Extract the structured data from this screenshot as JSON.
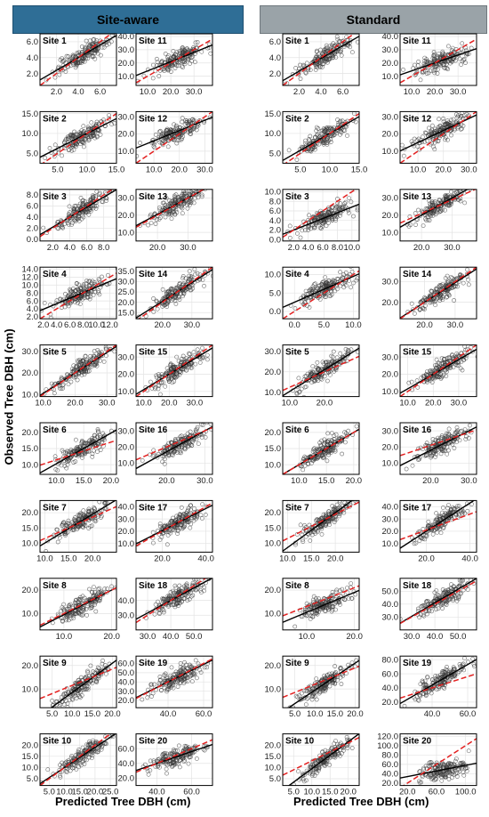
{
  "headers": {
    "left": "Site-aware",
    "right": "Standard"
  },
  "axes": {
    "xlabel": "Predicted Tree DBH (cm)",
    "ylabel": "Observed Tree DBH (cm)"
  },
  "colors": {
    "fit_line": "#000000",
    "one_to_one_line": "#e32020",
    "marker": "#3a3a3a",
    "grid": "#e3e3e3"
  },
  "chart_data": [
    {
      "type": "scatter",
      "group": "Site-aware",
      "title": "Site 1",
      "xticks": [
        "2.0",
        "4.0",
        "6.0"
      ],
      "yticks": [
        "2.0",
        "4.0",
        "6.0"
      ],
      "xlim": [
        0.5,
        7.5
      ],
      "ylim": [
        0.5,
        7.0
      ],
      "fit": {
        "slope": 0.8,
        "intercept": 0.8
      },
      "one_to_one": {
        "slope": 1,
        "intercept": 0
      }
    },
    {
      "type": "scatter",
      "group": "Site-aware",
      "title": "Site 11",
      "xticks": [
        "10.0",
        "20.0",
        "30.0"
      ],
      "yticks": [
        "10.0",
        "20.0",
        "30.0",
        "40.0"
      ],
      "xlim": [
        5,
        38
      ],
      "ylim": [
        3,
        42
      ],
      "fit": {
        "slope": 0.7,
        "intercept": 7.0
      },
      "one_to_one": {
        "slope": 1,
        "intercept": 0
      }
    },
    {
      "type": "scatter",
      "group": "Site-aware",
      "title": "Site 2",
      "xticks": [
        "5.0",
        "10.0",
        "15.0"
      ],
      "yticks": [
        "5.0",
        "10.0",
        "15.0"
      ],
      "xlim": [
        2,
        15
      ],
      "ylim": [
        2.5,
        15.5
      ],
      "fit": {
        "slope": 0.75,
        "intercept": 2.5
      },
      "one_to_one": {
        "slope": 1,
        "intercept": 0
      }
    },
    {
      "type": "scatter",
      "group": "Site-aware",
      "title": "Site 12",
      "xticks": [
        "10.0",
        "20.0",
        "30.0"
      ],
      "yticks": [
        "10.0",
        "20.0",
        "30.0"
      ],
      "xlim": [
        3,
        33
      ],
      "ylim": [
        3,
        33
      ],
      "fit": {
        "slope": 0.6,
        "intercept": 10.0
      },
      "one_to_one": {
        "slope": 1,
        "intercept": 0
      }
    },
    {
      "type": "scatter",
      "group": "Site-aware",
      "title": "Site 3",
      "xticks": [
        "2.0",
        "4.0",
        "6.0",
        "8.0"
      ],
      "yticks": [
        "0.0",
        "2.0",
        "4.0",
        "6.0",
        "8.0"
      ],
      "xlim": [
        0.5,
        9.5
      ],
      "ylim": [
        -0.3,
        9.0
      ],
      "fit": {
        "slope": 0.9,
        "intercept": 0.4
      },
      "one_to_one": {
        "slope": 1,
        "intercept": 0
      }
    },
    {
      "type": "scatter",
      "group": "Site-aware",
      "title": "Site 13",
      "xticks": [
        "20.0",
        "30.0"
      ],
      "yticks": [
        "10.0",
        "20.0",
        "30.0"
      ],
      "xlim": [
        13,
        38
      ],
      "ylim": [
        5,
        35
      ],
      "fit": {
        "slope": 0.95,
        "intercept": 1.5
      },
      "one_to_one": {
        "slope": 1,
        "intercept": 0
      }
    },
    {
      "type": "scatter",
      "group": "Site-aware",
      "title": "Site 4",
      "xticks": [
        "2.0",
        "4.0",
        "6.0",
        "8.0",
        "10.0",
        "12.0"
      ],
      "yticks": [
        "2.0",
        "4.0",
        "6.0",
        "8.0",
        "10.0",
        "12.0",
        "14.0"
      ],
      "xlim": [
        1.5,
        13
      ],
      "ylim": [
        1.5,
        14.5
      ],
      "fit": {
        "slope": 0.7,
        "intercept": 2.5
      },
      "one_to_one": {
        "slope": 1,
        "intercept": 0
      }
    },
    {
      "type": "scatter",
      "group": "Site-aware",
      "title": "Site 14",
      "xticks": [
        "20.0",
        "30.0"
      ],
      "yticks": [
        "15.0",
        "20.0",
        "25.0",
        "30.0",
        "35.0"
      ],
      "xlim": [
        11,
        37
      ],
      "ylim": [
        12,
        37
      ],
      "fit": {
        "slope": 0.9,
        "intercept": 2.5
      },
      "one_to_one": {
        "slope": 1,
        "intercept": 0
      }
    },
    {
      "type": "scatter",
      "group": "Site-aware",
      "title": "Site 5",
      "xticks": [
        "10.0",
        "20.0",
        "30.0"
      ],
      "yticks": [
        "10.0",
        "20.0",
        "30.0"
      ],
      "xlim": [
        9,
        33
      ],
      "ylim": [
        9,
        33
      ],
      "fit": {
        "slope": 0.95,
        "intercept": 1.0
      },
      "one_to_one": {
        "slope": 1,
        "intercept": 0
      }
    },
    {
      "type": "scatter",
      "group": "Site-aware",
      "title": "Site 15",
      "xticks": [
        "10.0",
        "20.0",
        "30.0"
      ],
      "yticks": [
        "10.0",
        "20.0",
        "30.0"
      ],
      "xlim": [
        7,
        37
      ],
      "ylim": [
        7,
        37
      ],
      "fit": {
        "slope": 0.9,
        "intercept": 2.0
      },
      "one_to_one": {
        "slope": 1,
        "intercept": 0
      }
    },
    {
      "type": "scatter",
      "group": "Site-aware",
      "title": "Site 6",
      "xticks": [
        "10.0",
        "15.0",
        "20.0"
      ],
      "yticks": [
        "10.0",
        "15.0",
        "20.0"
      ],
      "xlim": [
        7,
        21
      ],
      "ylim": [
        7,
        23
      ],
      "fit": {
        "slope": 0.95,
        "intercept": 0.8
      },
      "one_to_one": {
        "slope": 0.55,
        "intercept": 6.0
      }
    },
    {
      "type": "scatter",
      "group": "Site-aware",
      "title": "Site 16",
      "xticks": [
        "20.0",
        "30.0"
      ],
      "yticks": [
        "10.0",
        "20.0",
        "30.0"
      ],
      "xlim": [
        12,
        32
      ],
      "ylim": [
        3,
        35
      ],
      "fit": {
        "slope": 1.3,
        "intercept": -9.0
      },
      "one_to_one": {
        "slope": 1,
        "intercept": 0
      }
    },
    {
      "type": "scatter",
      "group": "Site-aware",
      "title": "Site 7",
      "xticks": [
        "10.0",
        "15.0",
        "20.0"
      ],
      "yticks": [
        "10.0",
        "15.0",
        "20.0"
      ],
      "xlim": [
        9,
        25
      ],
      "ylim": [
        7,
        24
      ],
      "fit": {
        "slope": 0.95,
        "intercept": 0.5
      },
      "one_to_one": {
        "slope": 0.7,
        "intercept": 4.5
      }
    },
    {
      "type": "scatter",
      "group": "Site-aware",
      "title": "Site 17",
      "xticks": [
        "20.0",
        "40.0"
      ],
      "yticks": [
        "10.0",
        "20.0",
        "30.0",
        "40.0"
      ],
      "xlim": [
        8,
        43
      ],
      "ylim": [
        3,
        45
      ],
      "fit": {
        "slope": 0.9,
        "intercept": 2.5
      },
      "one_to_one": {
        "slope": 1,
        "intercept": 0
      }
    },
    {
      "type": "scatter",
      "group": "Site-aware",
      "title": "Site 8",
      "xticks": [
        "10.0",
        "20.0"
      ],
      "yticks": [
        "10.0",
        "20.0"
      ],
      "xlim": [
        5,
        21
      ],
      "ylim": [
        3,
        25
      ],
      "fit": {
        "slope": 1.05,
        "intercept": -1.0
      },
      "one_to_one": {
        "slope": 1,
        "intercept": 0
      }
    },
    {
      "type": "scatter",
      "group": "Site-aware",
      "title": "Site 18",
      "xticks": [
        "30.0",
        "40.0",
        "50.0"
      ],
      "yticks": [
        "30.0",
        "40.0"
      ],
      "xlim": [
        25,
        58
      ],
      "ylim": [
        20,
        55
      ],
      "fit": {
        "slope": 0.85,
        "intercept": 6.0
      },
      "one_to_one": {
        "slope": 1,
        "intercept": 0
      }
    },
    {
      "type": "scatter",
      "group": "Site-aware",
      "title": "Site 9",
      "xticks": [
        "5.0",
        "10.0",
        "15.0",
        "20.0"
      ],
      "yticks": [
        "10.0",
        "20.0"
      ],
      "xlim": [
        2,
        21
      ],
      "ylim": [
        2,
        24
      ],
      "fit": {
        "slope": 1.25,
        "intercept": -4.0
      },
      "one_to_one": {
        "slope": 0.7,
        "intercept": 4.5
      }
    },
    {
      "type": "scatter",
      "group": "Site-aware",
      "title": "Site 19",
      "xticks": [
        "40.0",
        "60.0"
      ],
      "yticks": [
        "20.0",
        "30.0",
        "40.0",
        "50.0",
        "60.0"
      ],
      "xlim": [
        22,
        65
      ],
      "ylim": [
        12,
        68
      ],
      "fit": {
        "slope": 0.95,
        "intercept": 2.0
      },
      "one_to_one": {
        "slope": 1,
        "intercept": 0
      }
    },
    {
      "type": "scatter",
      "group": "Site-aware",
      "title": "Site 10",
      "xticks": [
        "5.0",
        "10.0",
        "15.0",
        "20.0",
        "25.0"
      ],
      "yticks": [
        "5.0",
        "10.0",
        "15.0",
        "20.0"
      ],
      "xlim": [
        2,
        27
      ],
      "ylim": [
        2,
        25
      ],
      "fit": {
        "slope": 0.9,
        "intercept": 1.0
      },
      "one_to_one": {
        "slope": 1,
        "intercept": 0
      }
    },
    {
      "type": "scatter",
      "group": "Site-aware",
      "title": "Site 20",
      "xticks": [
        "40.0",
        "60.0"
      ],
      "yticks": [
        "20.0",
        "40.0",
        "60.0"
      ],
      "xlim": [
        28,
        72
      ],
      "ylim": [
        10,
        80
      ],
      "fit": {
        "slope": 0.8,
        "intercept": 8.0
      },
      "one_to_one": {
        "slope": 1,
        "intercept": 0
      }
    },
    {
      "type": "scatter",
      "group": "Standard",
      "title": "Site 1",
      "xticks": [
        "2.0",
        "4.0",
        "6.0"
      ],
      "yticks": [
        "2.0",
        "4.0",
        "6.0"
      ],
      "xlim": [
        0.5,
        7.5
      ],
      "ylim": [
        0.5,
        7.0
      ],
      "fit": {
        "slope": 0.8,
        "intercept": 0.7
      },
      "one_to_one": {
        "slope": 1,
        "intercept": 0
      }
    },
    {
      "type": "scatter",
      "group": "Standard",
      "title": "Site 11",
      "xticks": [
        "10.0",
        "20.0",
        "30.0"
      ],
      "yticks": [
        "10.0",
        "20.0",
        "30.0",
        "40.0"
      ],
      "xlim": [
        5,
        38
      ],
      "ylim": [
        3,
        42
      ],
      "fit": {
        "slope": 0.6,
        "intercept": 8.0
      },
      "one_to_one": {
        "slope": 1,
        "intercept": 0
      }
    },
    {
      "type": "scatter",
      "group": "Standard",
      "title": "Site 2",
      "xticks": [
        "5.0",
        "10.0",
        "15.0"
      ],
      "yticks": [
        "5.0",
        "10.0",
        "15.0"
      ],
      "xlim": [
        2,
        15
      ],
      "ylim": [
        2.5,
        15.5
      ],
      "fit": {
        "slope": 0.85,
        "intercept": 1.5
      },
      "one_to_one": {
        "slope": 1,
        "intercept": 0
      }
    },
    {
      "type": "scatter",
      "group": "Standard",
      "title": "Site 12",
      "xticks": [
        "10.0",
        "20.0",
        "30.0"
      ],
      "yticks": [
        "10.0",
        "20.0",
        "30.0"
      ],
      "xlim": [
        3,
        33
      ],
      "ylim": [
        3,
        33
      ],
      "fit": {
        "slope": 0.7,
        "intercept": 8.0
      },
      "one_to_one": {
        "slope": 1,
        "intercept": 0
      }
    },
    {
      "type": "scatter",
      "group": "Standard",
      "title": "Site 3",
      "xticks": [
        "2.0",
        "4.0",
        "6.0",
        "8.0",
        "10.0"
      ],
      "yticks": [
        "0.0",
        "2.0",
        "4.0",
        "6.0",
        "8.0",
        "10.0"
      ],
      "xlim": [
        0.5,
        11
      ],
      "ylim": [
        -0.3,
        10.5
      ],
      "fit": {
        "slope": 0.6,
        "intercept": 0.8
      },
      "one_to_one": {
        "slope": 1,
        "intercept": 0
      }
    },
    {
      "type": "scatter",
      "group": "Standard",
      "title": "Site 13",
      "xticks": [
        "20.0",
        "30.0"
      ],
      "yticks": [
        "10.0",
        "20.0",
        "30.0"
      ],
      "xlim": [
        13,
        38
      ],
      "ylim": [
        5,
        35
      ],
      "fit": {
        "slope": 1.0,
        "intercept": 0.0
      },
      "one_to_one": {
        "slope": 0.8,
        "intercept": 5.0
      }
    },
    {
      "type": "scatter",
      "group": "Standard",
      "title": "Site 4",
      "xticks": [
        "0.0",
        "5.0",
        "10.0"
      ],
      "yticks": [
        "0.0",
        "5.0",
        "10.0"
      ],
      "xlim": [
        -2,
        11
      ],
      "ylim": [
        -2,
        12
      ],
      "fit": {
        "slope": 0.7,
        "intercept": 2.5
      },
      "one_to_one": {
        "slope": 1,
        "intercept": 0
      }
    },
    {
      "type": "scatter",
      "group": "Standard",
      "title": "Site 14",
      "xticks": [
        "20.0",
        "30.0"
      ],
      "yticks": [
        "20.0",
        "30.0"
      ],
      "xlim": [
        12,
        37
      ],
      "ylim": [
        12,
        37
      ],
      "fit": {
        "slope": 0.95,
        "intercept": 1.0
      },
      "one_to_one": {
        "slope": 1,
        "intercept": 0
      }
    },
    {
      "type": "scatter",
      "group": "Standard",
      "title": "Site 5",
      "xticks": [
        "10.0",
        "20.0"
      ],
      "yticks": [
        "10.0",
        "20.0",
        "30.0"
      ],
      "xlim": [
        8,
        30
      ],
      "ylim": [
        8,
        33
      ],
      "fit": {
        "slope": 1.05,
        "intercept": 0.0
      },
      "one_to_one": {
        "slope": 0.75,
        "intercept": 5.0
      }
    },
    {
      "type": "scatter",
      "group": "Standard",
      "title": "Site 15",
      "xticks": [
        "10.0",
        "20.0",
        "30.0"
      ],
      "yticks": [
        "10.0",
        "20.0",
        "30.0"
      ],
      "xlim": [
        7,
        37
      ],
      "ylim": [
        7,
        37
      ],
      "fit": {
        "slope": 0.85,
        "intercept": 3.0
      },
      "one_to_one": {
        "slope": 1,
        "intercept": 0
      }
    },
    {
      "type": "scatter",
      "group": "Standard",
      "title": "Site 6",
      "xticks": [
        "10.0",
        "15.0",
        "20.0"
      ],
      "yticks": [
        "10.0",
        "15.0",
        "20.0"
      ],
      "xlim": [
        7,
        21
      ],
      "ylim": [
        7,
        23
      ],
      "fit": {
        "slope": 1.0,
        "intercept": 0.0
      },
      "one_to_one": {
        "slope": 1,
        "intercept": 0
      }
    },
    {
      "type": "scatter",
      "group": "Standard",
      "title": "Site 16",
      "xticks": [
        "20.0",
        "30.0"
      ],
      "yticks": [
        "10.0",
        "20.0",
        "30.0"
      ],
      "xlim": [
        12,
        32
      ],
      "ylim": [
        3,
        35
      ],
      "fit": {
        "slope": 1.2,
        "intercept": -6.0
      },
      "one_to_one": {
        "slope": 0.8,
        "intercept": 5.0
      }
    },
    {
      "type": "scatter",
      "group": "Standard",
      "title": "Site 7",
      "xticks": [
        "10.0",
        "15.0",
        "20.0"
      ],
      "yticks": [
        "10.0",
        "15.0",
        "20.0"
      ],
      "xlim": [
        9,
        25
      ],
      "ylim": [
        7,
        24
      ],
      "fit": {
        "slope": 1.15,
        "intercept": -3.0
      },
      "one_to_one": {
        "slope": 0.8,
        "intercept": 3.5
      }
    },
    {
      "type": "scatter",
      "group": "Standard",
      "title": "Site 17",
      "xticks": [
        "20.0",
        "40.0"
      ],
      "yticks": [
        "10.0",
        "20.0",
        "30.0",
        "40.0"
      ],
      "xlim": [
        8,
        43
      ],
      "ylim": [
        3,
        45
      ],
      "fit": {
        "slope": 1.15,
        "intercept": -3.0
      },
      "one_to_one": {
        "slope": 0.65,
        "intercept": 8.0
      }
    },
    {
      "type": "scatter",
      "group": "Standard",
      "title": "Site 8",
      "xticks": [
        "10.0",
        "20.0"
      ],
      "yticks": [
        "10.0",
        "20.0"
      ],
      "xlim": [
        5,
        21
      ],
      "ylim": [
        3,
        25
      ],
      "fit": {
        "slope": 0.85,
        "intercept": 2.0
      },
      "one_to_one": {
        "slope": 0.8,
        "intercept": 5.0
      }
    },
    {
      "type": "scatter",
      "group": "Standard",
      "title": "Site 18",
      "xticks": [
        "30.0",
        "40.0",
        "50.0"
      ],
      "yticks": [
        "30.0",
        "40.0",
        "50.0"
      ],
      "xlim": [
        25,
        58
      ],
      "ylim": [
        20,
        60
      ],
      "fit": {
        "slope": 1.05,
        "intercept": -1.0
      },
      "one_to_one": {
        "slope": 1,
        "intercept": 0
      }
    },
    {
      "type": "scatter",
      "group": "Standard",
      "title": "Site 9",
      "xticks": [
        "5.0",
        "10.0",
        "15.0",
        "20.0"
      ],
      "yticks": [
        "10.0",
        "20.0"
      ],
      "xlim": [
        2,
        21
      ],
      "ylim": [
        2,
        24
      ],
      "fit": {
        "slope": 1.15,
        "intercept": -2.0
      },
      "one_to_one": {
        "slope": 0.7,
        "intercept": 5.0
      }
    },
    {
      "type": "scatter",
      "group": "Standard",
      "title": "Site 19",
      "xticks": [
        "40.0",
        "60.0"
      ],
      "yticks": [
        "20.0",
        "40.0",
        "60.0",
        "80.0"
      ],
      "xlim": [
        22,
        65
      ],
      "ylim": [
        12,
        85
      ],
      "fit": {
        "slope": 1.45,
        "intercept": -14.0
      },
      "one_to_one": {
        "slope": 0.8,
        "intercept": 8.0
      }
    },
    {
      "type": "scatter",
      "group": "Standard",
      "title": "Site 10",
      "xticks": [
        "5.0",
        "10.0",
        "15.0",
        "20.0"
      ],
      "yticks": [
        "5.0",
        "10.0",
        "15.0",
        "20.0"
      ],
      "xlim": [
        2,
        23
      ],
      "ylim": [
        2,
        25
      ],
      "fit": {
        "slope": 1.2,
        "intercept": -2.5
      },
      "one_to_one": {
        "slope": 0.8,
        "intercept": 5.0
      }
    },
    {
      "type": "scatter",
      "group": "Standard",
      "title": "Site 20",
      "xticks": [
        "20.0",
        "60.0",
        "100.0"
      ],
      "yticks": [
        "20.0",
        "40.0",
        "60.0",
        "80.0",
        "100.0",
        "120.0"
      ],
      "xlim": [
        10,
        115
      ],
      "ylim": [
        15,
        125
      ],
      "fit": {
        "slope": 0.3,
        "intercept": 28.0
      },
      "one_to_one": {
        "slope": 1,
        "intercept": 0
      }
    }
  ]
}
